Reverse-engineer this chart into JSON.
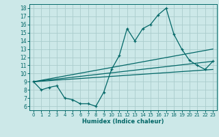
{
  "title": "",
  "xlabel": "Humidex (Indice chaleur)",
  "ylabel": "",
  "bg_color": "#cce8e8",
  "line_color": "#006666",
  "grid_color": "#aacccc",
  "xlim": [
    -0.5,
    23.5
  ],
  "ylim": [
    5.5,
    18.5
  ],
  "xticks": [
    0,
    1,
    2,
    3,
    4,
    5,
    6,
    7,
    8,
    9,
    10,
    11,
    12,
    13,
    14,
    15,
    16,
    17,
    18,
    19,
    20,
    21,
    22,
    23
  ],
  "yticks": [
    6,
    7,
    8,
    9,
    10,
    11,
    12,
    13,
    14,
    15,
    16,
    17,
    18
  ],
  "main_line_x": [
    0,
    1,
    2,
    3,
    4,
    5,
    6,
    7,
    8,
    9,
    10,
    11,
    12,
    13,
    14,
    15,
    16,
    17,
    18,
    19,
    20,
    21,
    22,
    23
  ],
  "main_line_y": [
    9.0,
    8.0,
    8.3,
    8.5,
    7.0,
    6.8,
    6.3,
    6.3,
    6.0,
    7.7,
    10.5,
    12.2,
    15.5,
    14.0,
    15.5,
    16.0,
    17.2,
    18.0,
    14.8,
    13.0,
    11.6,
    11.0,
    10.5,
    11.5
  ],
  "reg_line1_x": [
    0,
    23
  ],
  "reg_line1_y": [
    9.0,
    13.0
  ],
  "reg_line2_x": [
    0,
    23
  ],
  "reg_line2_y": [
    9.0,
    11.5
  ],
  "reg_line3_x": [
    0,
    23
  ],
  "reg_line3_y": [
    9.0,
    10.5
  ]
}
